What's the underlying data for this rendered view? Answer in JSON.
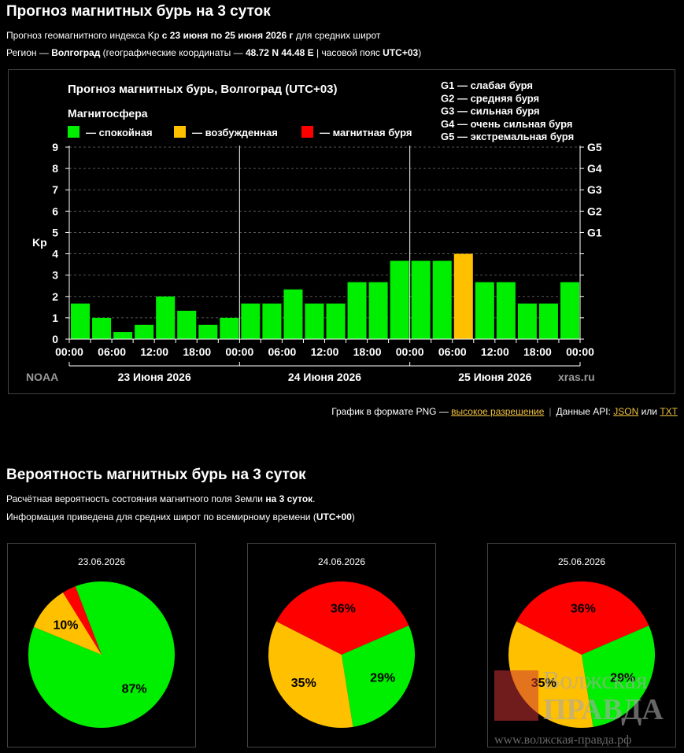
{
  "page": {
    "title": "Прогноз магнитных бурь на 3 суток",
    "line1": {
      "pre": "Прогноз геомагнитного индекса Kp ",
      "bold": "с 23 июня по 25 июня 2026 г",
      "post": " для средних широт"
    },
    "line2": {
      "pre": "Регион — ",
      "region": "Волгоград",
      "mid": " (географические координаты — ",
      "coords": "48.72 N 44.48 E",
      "mid2": " | часовой пояс ",
      "tz": "UTC+03",
      "post": ")"
    },
    "links": {
      "png_pre": "График в формате PNG — ",
      "png_link": "высокое разрешение",
      "api_pre": "Данные API: ",
      "json": "JSON",
      "or": " или ",
      "txt": "TXT"
    },
    "prob_title": "Вероятность магнитных бурь на 3 суток",
    "prob_line1": {
      "pre": "Расчётная вероятность состояния магнитного поля Земли ",
      "bold": "на 3 суток",
      "post": "."
    },
    "prob_line2": {
      "pre": "Информация приведена для средних широт по всемирному времени (",
      "bold": "UTC+00",
      "post": ")"
    },
    "watermark": {
      "name_top": "Волжская",
      "name_bottom": "ПРАВДА",
      "url": "www.волжская-правда.рф"
    }
  },
  "chart_data": [
    {
      "type": "bar",
      "title": "Прогноз магнитных бурь, Волгоград (UTC+03)",
      "legend_title": "Магнитосфера",
      "legend": [
        {
          "label": "— спокойная",
          "color": "#00ee00"
        },
        {
          "label": "— возбужденная",
          "color": "#ffc000"
        },
        {
          "label": "— магнитная буря",
          "color": "#ff0000"
        }
      ],
      "g_legend": [
        "G1 — слабая буря",
        "G2 — средняя буря",
        "G3 — сильная буря",
        "G4 — очень сильная буря",
        "G5 — экстремальная буря"
      ],
      "ylabel": "Kp",
      "ylim": [
        0,
        9
      ],
      "yticks": [
        "0",
        "1",
        "2",
        "3",
        "4",
        "5",
        "6",
        "7",
        "8",
        "9"
      ],
      "right_ticks": [
        {
          "value": 5,
          "label": "G1"
        },
        {
          "value": 6,
          "label": "G2"
        },
        {
          "value": 7,
          "label": "G3"
        },
        {
          "value": 8,
          "label": "G4"
        },
        {
          "value": 9,
          "label": "G5"
        }
      ],
      "xtick_labels": [
        "00:00",
        "06:00",
        "12:00",
        "18:00",
        "00:00",
        "06:00",
        "12:00",
        "18:00",
        "00:00",
        "06:00",
        "12:00",
        "18:00",
        "00:00"
      ],
      "days": [
        "23 Июня 2026",
        "24 Июня 2026",
        "25 Июня 2026"
      ],
      "values": [
        1.67,
        1.0,
        0.33,
        0.67,
        2.0,
        1.33,
        0.67,
        1.0,
        1.67,
        1.67,
        2.33,
        1.67,
        1.67,
        2.67,
        2.67,
        3.67,
        3.67,
        3.67,
        4.0,
        2.67,
        2.67,
        1.67,
        1.67,
        2.67
      ],
      "colors": [
        "#00ee00",
        "#00ee00",
        "#00ee00",
        "#00ee00",
        "#00ee00",
        "#00ee00",
        "#00ee00",
        "#00ee00",
        "#00ee00",
        "#00ee00",
        "#00ee00",
        "#00ee00",
        "#00ee00",
        "#00ee00",
        "#00ee00",
        "#00ee00",
        "#00ee00",
        "#00ee00",
        "#ffc000",
        "#00ee00",
        "#00ee00",
        "#00ee00",
        "#00ee00",
        "#00ee00"
      ],
      "grid": true,
      "source_left": "NOAA",
      "source_right": "xras.ru"
    },
    {
      "type": "pie",
      "title": "23.06.2026",
      "slices": [
        {
          "label": "87%",
          "value": 87,
          "color": "#00ee00"
        },
        {
          "label": "10%",
          "value": 10,
          "color": "#ffc000"
        },
        {
          "label": "",
          "value": 3,
          "color": "#ff0000"
        }
      ]
    },
    {
      "type": "pie",
      "title": "24.06.2026",
      "slices": [
        {
          "label": "35%",
          "value": 35,
          "color": "#ffc000"
        },
        {
          "label": "36%",
          "value": 36,
          "color": "#ff0000"
        },
        {
          "label": "29%",
          "value": 29,
          "color": "#00ee00"
        }
      ]
    },
    {
      "type": "pie",
      "title": "25.06.2026",
      "slices": [
        {
          "label": "35%",
          "value": 35,
          "color": "#ffc000"
        },
        {
          "label": "36%",
          "value": 36,
          "color": "#ff0000"
        },
        {
          "label": "29%",
          "value": 29,
          "color": "#00ee00"
        }
      ]
    }
  ]
}
